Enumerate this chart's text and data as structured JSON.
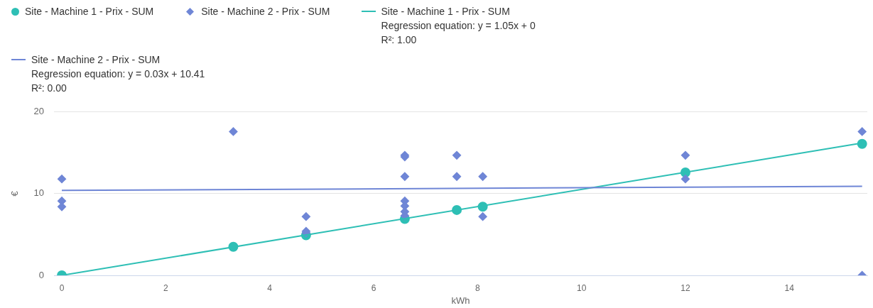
{
  "chart_data": {
    "type": "scatter",
    "xlabel": "kWh",
    "ylabel": "€",
    "xlim": [
      -0.15,
      15.5
    ],
    "xticks": [
      0,
      2,
      4,
      6,
      8,
      10,
      12,
      14
    ],
    "ylim": [
      0,
      20
    ],
    "yticks": [
      0,
      10,
      20
    ],
    "grid": "y",
    "legend": "top left",
    "series": [
      {
        "name": "Site - Machine 1 - Prix - SUM",
        "color": "#2ebfb5",
        "marker": "circle",
        "x": [
          0,
          3.3,
          4.7,
          6.6,
          7.6,
          8.1,
          12,
          15.4
        ],
        "values": [
          0,
          3.5,
          4.9,
          6.9,
          8.0,
          8.4,
          12.6,
          16.1
        ]
      },
      {
        "name": "Site - Machine 2 - Prix - SUM",
        "color": "#6f86d6",
        "marker": "diamond",
        "x": [
          0,
          0,
          0,
          3.3,
          4.7,
          4.7,
          4.7,
          6.6,
          6.6,
          6.6,
          6.6,
          6.6,
          6.6,
          6.6,
          7.6,
          7.6,
          8.1,
          8.1,
          12,
          12,
          15.4,
          15.4
        ],
        "values": [
          11.8,
          9.1,
          8.4,
          17.6,
          7.2,
          5.4,
          5.2,
          14.7,
          14.5,
          12.1,
          9.1,
          8.5,
          7.8,
          7.3,
          14.7,
          12.1,
          12.1,
          7.2,
          14.7,
          11.8,
          17.6,
          0
        ]
      },
      {
        "type": "line",
        "name": "Site - Machine 1 - Prix - SUM\nRegression equation: y = 1.05x + 0\nR²: 1.00",
        "color": "#2ebfb5",
        "marker": "none",
        "x": [
          0,
          15.4
        ],
        "values": [
          0,
          16.2
        ]
      },
      {
        "type": "line",
        "name": "Site - Machine 2 - Prix - SUM\nRegression equation: y = 0.03x + 10.41\nR²: 0.00",
        "color": "#6f86d6",
        "marker": "none",
        "x": [
          0,
          15.4
        ],
        "values": [
          10.4,
          10.9
        ]
      }
    ]
  }
}
